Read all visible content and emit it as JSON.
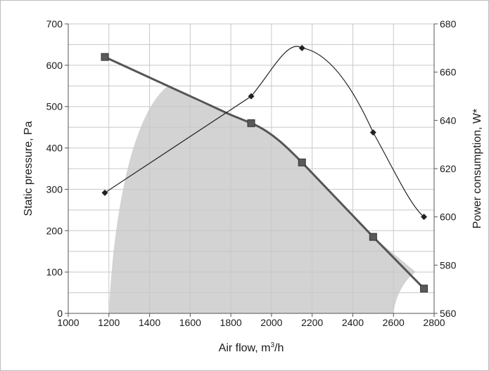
{
  "chart_data": {
    "type": "line",
    "xlabel": "Air flow, m³/h",
    "xlabel_parts": {
      "pre": "Air flow, m",
      "sup": "3",
      "post": "/h"
    },
    "ylabel": "Static pressure, Pa",
    "y2label": "Power consumption, W*",
    "xlim": [
      1000,
      2800
    ],
    "ylim": [
      0,
      700
    ],
    "y2lim": [
      560,
      680
    ],
    "grid": true,
    "x_ticks": [
      "1000",
      "1200",
      "1400",
      "1600",
      "1800",
      "2000",
      "2200",
      "2400",
      "2600",
      "2800"
    ],
    "y_ticks": [
      "0",
      "100",
      "200",
      "300",
      "400",
      "500",
      "600",
      "700"
    ],
    "y2_ticks": [
      "560",
      "580",
      "600",
      "620",
      "640",
      "660",
      "680"
    ],
    "series": [
      {
        "axis": "left",
        "marker": "square",
        "color": "#555555",
        "x": [
          1180,
          1900,
          2150,
          2500,
          2750
        ],
        "y": [
          620,
          460,
          365,
          185,
          60
        ]
      },
      {
        "axis": "right",
        "marker": "diamond",
        "color": "#222222",
        "x": [
          1180,
          1900,
          2150,
          2500,
          2750
        ],
        "y": [
          610,
          650,
          670,
          635,
          600
        ]
      }
    ],
    "operating_region": {
      "color": "#d3d3d3",
      "x": [
        1200,
        1490,
        2600,
        2710
      ],
      "y": [
        0,
        550,
        0,
        100
      ]
    }
  }
}
